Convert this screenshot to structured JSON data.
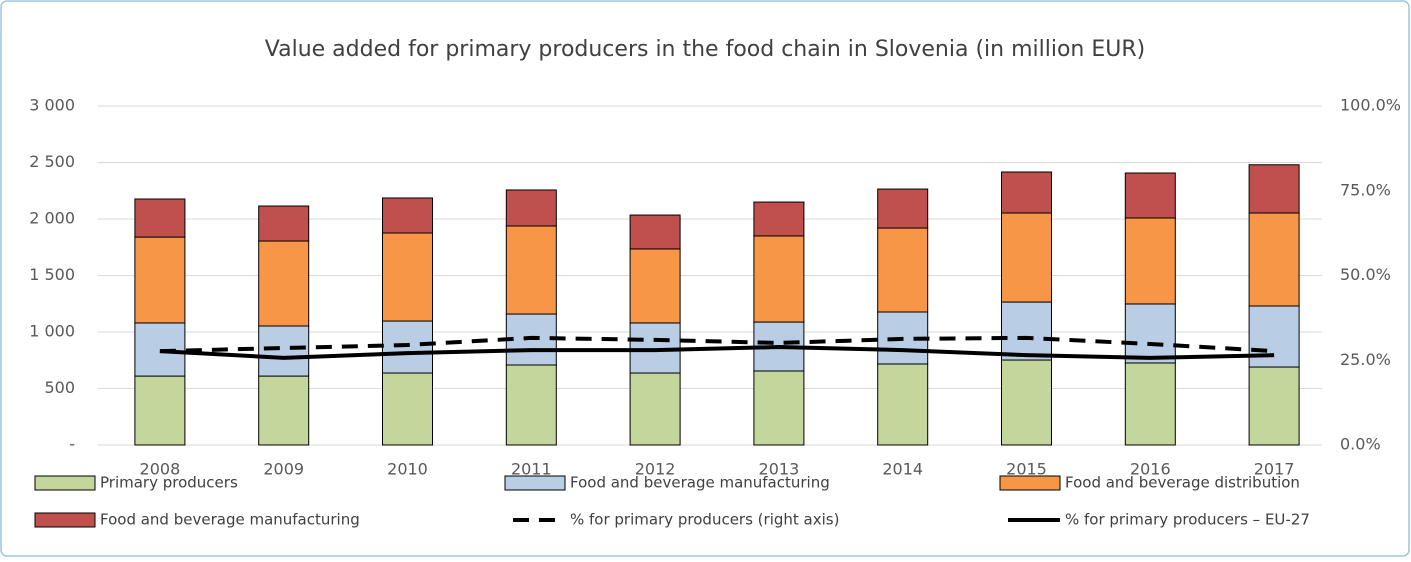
{
  "chart_data": {
    "type": "bar",
    "title": "Value added for primary producers in the food chain in Slovenia (in million EUR)",
    "categories": [
      "2008",
      "2009",
      "2010",
      "2011",
      "2012",
      "2013",
      "2014",
      "2015",
      "2016",
      "2017"
    ],
    "stacked": true,
    "series": [
      {
        "name": "Primary producers",
        "color": "#c3d69b",
        "values": [
          610,
          610,
          637,
          708,
          637,
          655,
          717,
          752,
          726,
          690
        ]
      },
      {
        "name": "Food and beverage manufacturing",
        "color": "#b9cde5",
        "values": [
          470,
          443,
          460,
          451,
          443,
          433,
          460,
          513,
          522,
          540
        ]
      },
      {
        "name": "Food and beverage distribution",
        "color": "#f79646",
        "values": [
          760,
          752,
          779,
          779,
          655,
          762,
          743,
          788,
          761,
          823
        ]
      },
      {
        "name": "Food and beverage manufacturing",
        "color": "#c0504d",
        "values": [
          337,
          310,
          310,
          319,
          300,
          300,
          345,
          363,
          398,
          427
        ]
      },
      {
        "name": "% for primary producers (right axis)",
        "color": "#000000",
        "axis": "y2",
        "dash": true,
        "values": [
          27.7,
          28.6,
          29.5,
          31.6,
          31.0,
          30.1,
          31.3,
          31.6,
          29.8,
          27.7
        ]
      },
      {
        "name": "% for primary producers – EU-27",
        "color": "#000000",
        "axis": "y2",
        "dash": false,
        "values": [
          27.7,
          25.7,
          27.1,
          28.0,
          28.0,
          28.9,
          28.0,
          26.5,
          25.7,
          26.5
        ]
      }
    ],
    "ylim": [
      0,
      3000
    ],
    "yticks": [
      {
        "value": 0,
        "label": "-"
      },
      500,
      {
        "value": 1000,
        "label": "1 000"
      },
      {
        "value": 1500,
        "label": "1 500"
      },
      {
        "value": 2000,
        "label": "2 000"
      },
      {
        "value": 2500,
        "label": "2 500"
      },
      {
        "value": 3000,
        "label": "3 000"
      }
    ],
    "y2lim": [
      0,
      100
    ],
    "y2ticks": [
      {
        "value": 0,
        "label": "0.0%"
      },
      {
        "value": 25,
        "label": "25.0%"
      },
      {
        "value": 50,
        "label": "50.0%"
      },
      {
        "value": 75,
        "label": "75.0%"
      },
      {
        "value": 100,
        "label": "100.0%"
      }
    ],
    "grid": true
  }
}
